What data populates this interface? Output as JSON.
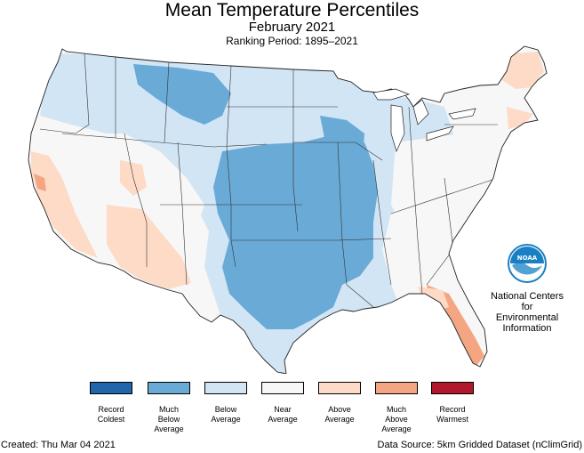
{
  "header": {
    "title": "Mean Temperature Percentiles",
    "subtitle": "February 2021",
    "ranking_period": "Ranking Period: 1895–2021"
  },
  "organization": {
    "line1": "National Centers for",
    "line2": "Environmental",
    "line3": "Information",
    "logo_text": "NOAA"
  },
  "legend": {
    "items": [
      {
        "lines": [
          "Record",
          "Coldest"
        ],
        "color": "#2166ac"
      },
      {
        "lines": [
          "Much",
          "Below",
          "Average"
        ],
        "color": "#6aaad6"
      },
      {
        "lines": [
          "Below",
          "Average"
        ],
        "color": "#d1e5f5"
      },
      {
        "lines": [
          "Near",
          "Average"
        ],
        "color": "#f7f7f7"
      },
      {
        "lines": [
          "Above",
          "Average"
        ],
        "color": "#fddbc7"
      },
      {
        "lines": [
          "Much",
          "Above",
          "Average"
        ],
        "color": "#f4a582"
      },
      {
        "lines": [
          "Record",
          "Warmest"
        ],
        "color": "#b2182b"
      }
    ]
  },
  "footer": {
    "created": "Created: Thu Mar 04 2021",
    "source": "Data Source: 5km Gridded Dataset (nClimGrid)"
  },
  "colors": {
    "near_average": "#f7f7f7",
    "below_average": "#d1e5f5",
    "much_below": "#6aaad6",
    "above_average": "#fddbc7",
    "much_above": "#f4a582",
    "noaa_blue": "#1a80c4"
  }
}
